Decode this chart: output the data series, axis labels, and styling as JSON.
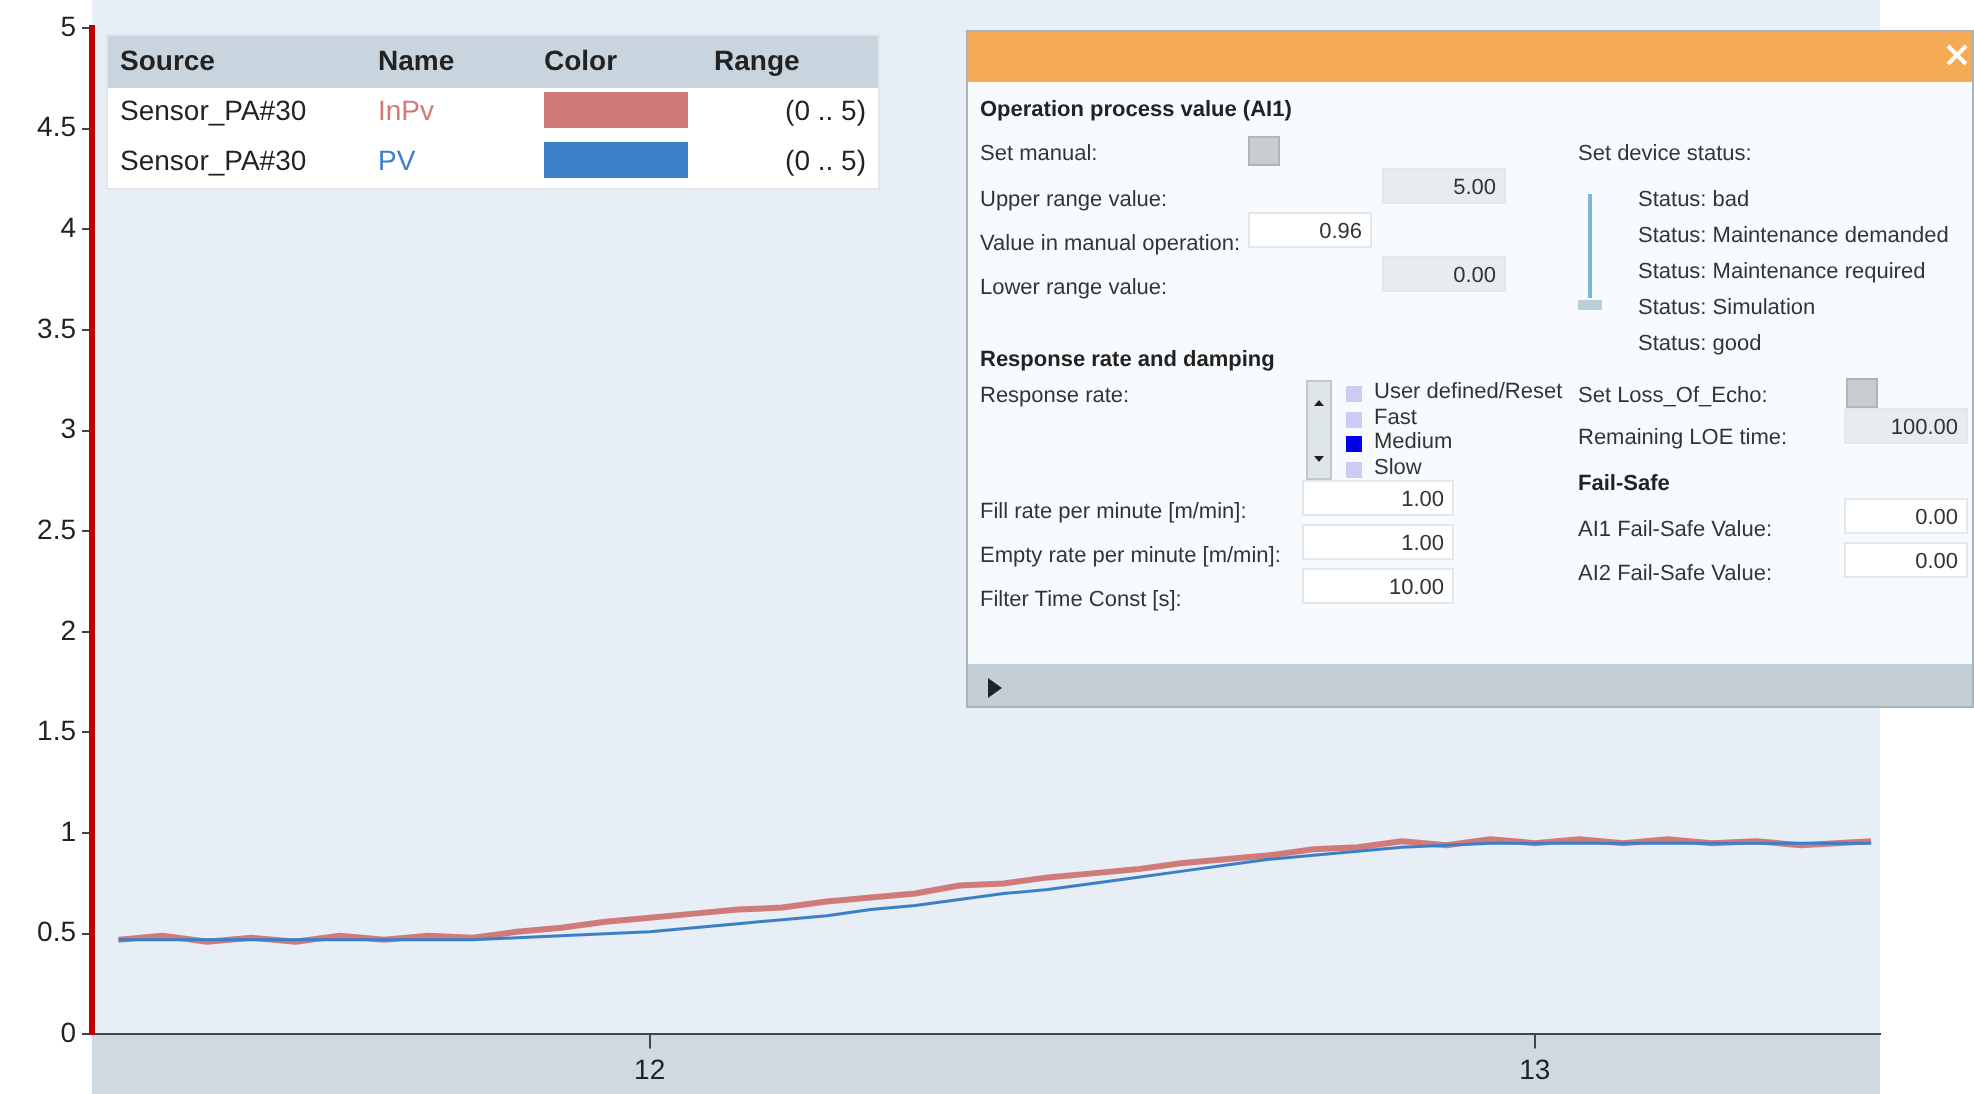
{
  "chart_data": [
    {
      "type": "line",
      "x": [
        11.4,
        11.45,
        11.5,
        11.55,
        11.6,
        11.65,
        11.7,
        11.75,
        11.8,
        11.85,
        11.9,
        11.95,
        12.0,
        12.05,
        12.1,
        12.15,
        12.2,
        12.25,
        12.3,
        12.35,
        12.4,
        12.45,
        12.5,
        12.55,
        12.6,
        12.65,
        12.7,
        12.75,
        12.8,
        12.85,
        12.9,
        12.95,
        13.0,
        13.05,
        13.1,
        13.15,
        13.2,
        13.25,
        13.3,
        13.38
      ],
      "series": [
        {
          "name": "InPv",
          "color": "#d07a7a",
          "values": [
            0.47,
            0.49,
            0.46,
            0.48,
            0.46,
            0.49,
            0.47,
            0.49,
            0.48,
            0.51,
            0.53,
            0.56,
            0.58,
            0.6,
            0.62,
            0.63,
            0.66,
            0.68,
            0.7,
            0.74,
            0.75,
            0.78,
            0.8,
            0.82,
            0.85,
            0.87,
            0.89,
            0.92,
            0.93,
            0.96,
            0.94,
            0.97,
            0.95,
            0.97,
            0.95,
            0.97,
            0.95,
            0.96,
            0.94,
            0.96
          ]
        },
        {
          "name": "PV",
          "color": "#3a7fc8",
          "values": [
            0.47,
            0.47,
            0.47,
            0.47,
            0.47,
            0.47,
            0.47,
            0.47,
            0.47,
            0.48,
            0.49,
            0.5,
            0.51,
            0.53,
            0.55,
            0.57,
            0.59,
            0.62,
            0.64,
            0.67,
            0.7,
            0.72,
            0.75,
            0.78,
            0.81,
            0.84,
            0.87,
            0.89,
            0.91,
            0.93,
            0.94,
            0.95,
            0.95,
            0.95,
            0.95,
            0.95,
            0.95,
            0.95,
            0.95,
            0.95
          ]
        }
      ],
      "xlim": [
        11.37,
        13.39
      ],
      "xticks": [
        12,
        13
      ],
      "ylim": [
        0,
        5
      ],
      "yticks": [
        0,
        0.5,
        1,
        1.5,
        2,
        2.5,
        3,
        3.5,
        4,
        4.5,
        5
      ],
      "grid": false,
      "legend": "top left",
      "marker": "none",
      "line_style": "solid",
      "annotations": [
        "Source",
        "Name",
        "Color",
        "Range",
        "Sensor_PA#30",
        "(0 .. 5)",
        "Sensor_PA#30",
        "(0 .. 5)"
      ]
    },
    {
      "type": "other",
      "annotations": [
        "Operation process value (AI1)",
        "Set manual:",
        "Upper range value:",
        "5.00",
        "Value in manual operation:",
        "0.96",
        "Lower range value:",
        "0.00",
        "Response rate and damping",
        "Response rate:",
        "User defined/Reset",
        "Fast",
        "Medium",
        "Slow",
        "Fill rate per minute [m/min]:",
        "1.00",
        "Empty rate per minute [m/min]:",
        "1.00",
        "Filter Time Const [s]:",
        "10.00",
        "Set device status:",
        "Status: bad",
        "Status: Maintenance demanded",
        "Status: Maintenance required",
        "Status: Simulation",
        "Status: good",
        "Set Loss_Of_Echo:",
        "Remaining LOE time:",
        "100.00",
        "Fail-Safe",
        "AI1 Fail-Safe Value:",
        "0.00",
        "AI2 Fail-Safe Value:",
        "0.00"
      ]
    }
  ]
}
